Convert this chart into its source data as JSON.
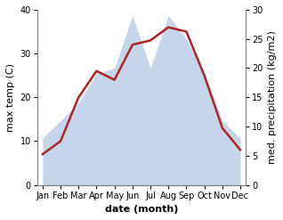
{
  "months": [
    "Jan",
    "Feb",
    "Mar",
    "Apr",
    "May",
    "Jun",
    "Jul",
    "Aug",
    "Sep",
    "Oct",
    "Nov",
    "Dec"
  ],
  "temperature": [
    7,
    10,
    20,
    26,
    24,
    32,
    33,
    36,
    35,
    25,
    13,
    8
  ],
  "precipitation": [
    8,
    11,
    14,
    19,
    20,
    29,
    20,
    29,
    25,
    19,
    11,
    8
  ],
  "temp_color": "#b22222",
  "precip_color": "#c5d5ea",
  "temp_ylim": [
    0,
    40
  ],
  "precip_ylim": [
    0,
    30
  ],
  "xlabel": "date (month)",
  "ylabel_left": "max temp (C)",
  "ylabel_right": "med. precipitation (kg/m2)",
  "label_fontsize": 8,
  "tick_fontsize": 7,
  "linewidth": 1.8
}
